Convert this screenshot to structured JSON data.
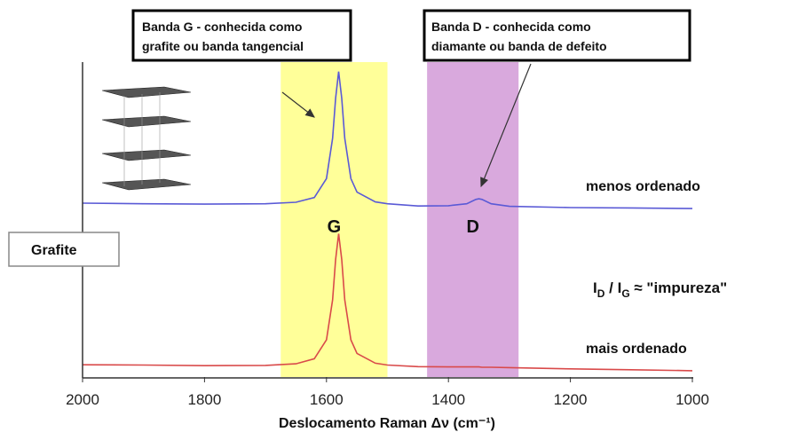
{
  "chart_data": {
    "type": "line",
    "xlabel": "Deslocamento Raman Δν (cm⁻¹)",
    "xlim": [
      2000,
      1000
    ],
    "xticks": [
      2000,
      1800,
      1600,
      1400,
      1200,
      1000
    ],
    "ylim": [
      0,
      100
    ],
    "x": [
      2000,
      1900,
      1800,
      1700,
      1650,
      1620,
      1600,
      1590,
      1585,
      1580,
      1575,
      1570,
      1560,
      1550,
      1520,
      1500,
      1450,
      1400,
      1370,
      1355,
      1350,
      1345,
      1330,
      1300,
      1200,
      1100,
      1000
    ],
    "series": [
      {
        "name": "menos ordenado",
        "color": "#5a5ad6",
        "values": [
          55.2,
          55.0,
          54.9,
          55.0,
          55.5,
          57.0,
          63.0,
          75.8,
          88.5,
          97.0,
          88.5,
          75.8,
          63.0,
          58.7,
          55.6,
          55.0,
          54.3,
          54.4,
          55.0,
          56.4,
          56.6,
          56.4,
          55.0,
          54.2,
          53.8,
          53.7,
          53.5
        ]
      },
      {
        "name": "mais ordenado",
        "color": "#d94a4a",
        "values": [
          3.9,
          3.8,
          3.6,
          3.7,
          4.2,
          5.8,
          11.8,
          24.5,
          37.3,
          45.5,
          37.3,
          24.5,
          11.8,
          7.5,
          4.4,
          3.8,
          3.3,
          3.2,
          3.2,
          3.2,
          3.2,
          3.1,
          3.1,
          3.0,
          2.6,
          2.3,
          2.0
        ]
      }
    ],
    "bands": [
      {
        "label": "G",
        "xlim": [
          1675,
          1500
        ],
        "color": "#ffff99",
        "note": [
          "Banda G - conhecida como",
          "grafite ou banda tangencial"
        ]
      },
      {
        "label": "D",
        "xlim": [
          1435,
          1285
        ],
        "color": "#d9a9dd",
        "note": [
          "Banda D - conhecida como",
          "diamante ou banda de defeito"
        ]
      }
    ],
    "sample_label": "Grafite",
    "ratio_label": {
      "symbol": "I",
      "sub1": "D",
      "separator": " / I",
      "sub2": "G",
      "rest": " ≈ \"impureza\""
    }
  }
}
